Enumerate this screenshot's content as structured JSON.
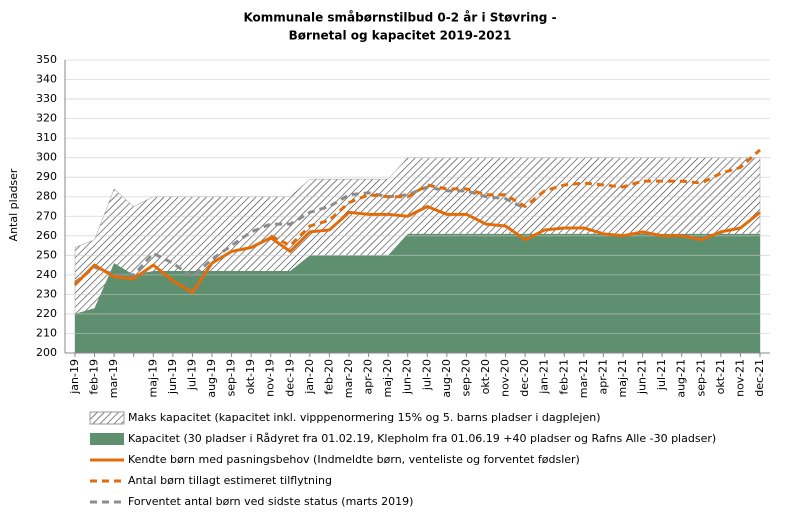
{
  "chart_data": {
    "type": "line",
    "title": [
      "Kommunale  småbørnstilbud  0-2 år i Støvring -",
      "Børnetal og kapacitet 2019-2021"
    ],
    "ylabel": "Antal pladser",
    "categories": [
      "jan-19",
      "feb-19",
      "mar-19",
      null,
      "maj-19",
      "jun-19",
      "jul-19",
      "aug-19",
      "sep-19",
      "okt-19",
      "nov-19",
      "dec-19",
      "jan-20",
      "feb-20",
      "mar-20",
      "apr-20",
      "maj-20",
      "jun-20",
      "jul-20",
      "aug-20",
      "sep-20",
      "okt-20",
      "nov-20",
      "dec-20",
      "jan-21",
      "feb-21",
      "mar-21",
      "apr-21",
      "maj-21",
      "jun-21",
      "jul-21",
      "aug-21",
      "sep-21",
      "okt-21",
      "nov-21",
      "dec-21"
    ],
    "ylim": [
      200,
      350
    ],
    "yticks": [
      200,
      210,
      220,
      230,
      240,
      250,
      260,
      270,
      280,
      290,
      300,
      310,
      320,
      330,
      340,
      350
    ],
    "grid": true,
    "series": [
      {
        "name": "Maks kapacitet (kapacitet inkl. vipppenormering 15% og 5. barns pladser i dagplejen)",
        "style": "hatched-area",
        "color": "#333333",
        "values": [
          254,
          258,
          284,
          275,
          280,
          280,
          280,
          280,
          280,
          280,
          280,
          280,
          289,
          289,
          289,
          289,
          289,
          300,
          300,
          300,
          300,
          300,
          300,
          300,
          300,
          300,
          300,
          300,
          300,
          300,
          300,
          300,
          300,
          300,
          300,
          300
        ]
      },
      {
        "name": "Kapacitet (30 pladser i Rådyret fra 01.02.19, Klepholm fra 01.06.19 +40 pladser og Rafns Alle -30 pladser)",
        "style": "area",
        "color": "#5e8f6e",
        "values": [
          220,
          223,
          246,
          240,
          242,
          242,
          242,
          242,
          242,
          242,
          242,
          242,
          250,
          250,
          250,
          250,
          250,
          261,
          261,
          261,
          261,
          261,
          261,
          261,
          261,
          261,
          261,
          261,
          261,
          261,
          261,
          261,
          261,
          261,
          261,
          261
        ]
      },
      {
        "name": "Kendte børn med pasningsbehov (Indmeldte børn, venteliste og forventet fødsler)",
        "style": "line",
        "dashed": false,
        "color": "#e36c0a",
        "values": [
          235,
          245,
          239,
          238,
          245,
          237,
          231,
          246,
          252,
          254,
          259,
          252,
          262,
          263,
          272,
          271,
          271,
          270,
          275,
          271,
          271,
          266,
          265,
          258,
          263,
          264,
          264,
          261,
          260,
          262,
          260,
          260,
          258,
          262,
          264,
          272
        ]
      },
      {
        "name": "Antal børn tillagt estimeret tilflytning",
        "style": "line",
        "dashed": true,
        "color": "#e36c0a",
        "values": [
          null,
          null,
          null,
          null,
          null,
          null,
          null,
          null,
          null,
          null,
          260,
          255,
          265,
          268,
          277,
          281,
          280,
          280,
          286,
          284,
          284,
          281,
          281,
          275,
          283,
          286,
          287,
          286,
          285,
          288,
          288,
          288,
          287,
          292,
          295,
          304
        ]
      },
      {
        "name": "Forventet antal børn ved sidste status (marts 2019)",
        "style": "line",
        "dashed": true,
        "color": "#8c8c8c",
        "values": [
          236,
          244,
          240,
          240,
          251,
          246,
          239,
          248,
          255,
          262,
          266,
          266,
          272,
          275,
          281,
          282,
          280,
          281,
          285,
          283,
          283,
          280,
          279,
          274,
          null,
          null,
          null,
          null,
          null,
          null,
          null,
          null,
          null,
          null,
          null,
          null
        ]
      }
    ]
  }
}
